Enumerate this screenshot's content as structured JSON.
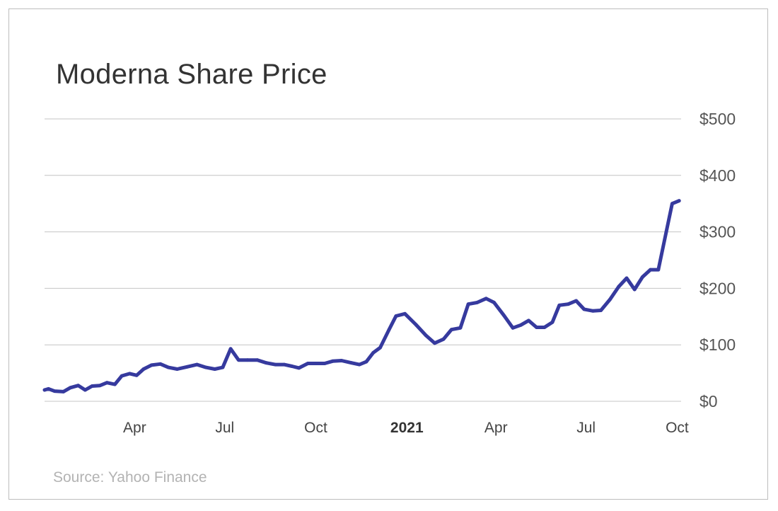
{
  "chart_data": {
    "type": "line",
    "title": "Moderna Share Price",
    "source": "Source: Yahoo Finance",
    "xlabel": "",
    "ylabel": "",
    "ylim": [
      0,
      500
    ],
    "y_ticks": [
      "$500",
      "$400",
      "$300",
      "$200",
      "$100",
      "$0"
    ],
    "y_tick_values": [
      500,
      400,
      300,
      200,
      100,
      0
    ],
    "x_ticks": [
      {
        "label": "Apr",
        "date": "2020-04-01",
        "bold": false
      },
      {
        "label": "Jul",
        "date": "2020-07-01",
        "bold": false
      },
      {
        "label": "Oct",
        "date": "2020-10-01",
        "bold": false
      },
      {
        "label": "2021",
        "date": "2021-01-01",
        "bold": true
      },
      {
        "label": "Apr",
        "date": "2021-04-01",
        "bold": false
      },
      {
        "label": "Jul",
        "date": "2021-07-01",
        "bold": false
      },
      {
        "label": "Oct",
        "date": "2021-10-01",
        "bold": false
      }
    ],
    "xlim": [
      "2020-01-01",
      "2021-10-05"
    ],
    "grid": true,
    "line_color": "#363a9e",
    "series": [
      {
        "points": [
          [
            "2020-01-01",
            20
          ],
          [
            "2020-01-05",
            22
          ],
          [
            "2020-01-11",
            18
          ],
          [
            "2020-01-20",
            17
          ],
          [
            "2020-01-27",
            24
          ],
          [
            "2020-02-04",
            28
          ],
          [
            "2020-02-11",
            20
          ],
          [
            "2020-02-18",
            27
          ],
          [
            "2020-02-26",
            28
          ],
          [
            "2020-03-04",
            33
          ],
          [
            "2020-03-12",
            30
          ],
          [
            "2020-03-19",
            45
          ],
          [
            "2020-03-27",
            49
          ],
          [
            "2020-04-03",
            46
          ],
          [
            "2020-04-10",
            57
          ],
          [
            "2020-04-18",
            64
          ],
          [
            "2020-04-27",
            66
          ],
          [
            "2020-05-05",
            60
          ],
          [
            "2020-05-14",
            57
          ],
          [
            "2020-05-24",
            61
          ],
          [
            "2020-06-03",
            65
          ],
          [
            "2020-06-12",
            60
          ],
          [
            "2020-06-21",
            57
          ],
          [
            "2020-06-29",
            60
          ],
          [
            "2020-07-07",
            93
          ],
          [
            "2020-07-15",
            73
          ],
          [
            "2020-07-24",
            73
          ],
          [
            "2020-08-03",
            73
          ],
          [
            "2020-08-12",
            68
          ],
          [
            "2020-08-21",
            65
          ],
          [
            "2020-08-30",
            65
          ],
          [
            "2020-09-07",
            62
          ],
          [
            "2020-09-14",
            59
          ],
          [
            "2020-09-23",
            67
          ],
          [
            "2020-10-02",
            67
          ],
          [
            "2020-10-10",
            67
          ],
          [
            "2020-10-18",
            71
          ],
          [
            "2020-10-27",
            72
          ],
          [
            "2020-11-06",
            68
          ],
          [
            "2020-11-14",
            65
          ],
          [
            "2020-11-21",
            70
          ],
          [
            "2020-11-28",
            86
          ],
          [
            "2020-12-05",
            95
          ],
          [
            "2020-12-14",
            127
          ],
          [
            "2020-12-21",
            151
          ],
          [
            "2020-12-30",
            155
          ],
          [
            "2021-01-10",
            136
          ],
          [
            "2021-01-20",
            117
          ],
          [
            "2021-01-29",
            103
          ],
          [
            "2021-02-07",
            110
          ],
          [
            "2021-02-15",
            127
          ],
          [
            "2021-02-24",
            130
          ],
          [
            "2021-03-04",
            172
          ],
          [
            "2021-03-13",
            175
          ],
          [
            "2021-03-22",
            182
          ],
          [
            "2021-03-30",
            175
          ],
          [
            "2021-04-09",
            152
          ],
          [
            "2021-04-18",
            130
          ],
          [
            "2021-04-26",
            135
          ],
          [
            "2021-05-04",
            143
          ],
          [
            "2021-05-12",
            131
          ],
          [
            "2021-05-20",
            131
          ],
          [
            "2021-05-28",
            140
          ],
          [
            "2021-06-04",
            170
          ],
          [
            "2021-06-13",
            172
          ],
          [
            "2021-06-21",
            178
          ],
          [
            "2021-06-29",
            163
          ],
          [
            "2021-07-08",
            160
          ],
          [
            "2021-07-16",
            161
          ],
          [
            "2021-07-25",
            180
          ],
          [
            "2021-08-03",
            203
          ],
          [
            "2021-08-11",
            218
          ],
          [
            "2021-08-19",
            198
          ],
          [
            "2021-08-27",
            220
          ],
          [
            "2021-09-04",
            233
          ],
          [
            "2021-09-12",
            233
          ],
          [
            "2021-09-20",
            300
          ],
          [
            "2021-09-26",
            350
          ],
          [
            "2021-10-03",
            355
          ]
        ]
      }
    ]
  }
}
